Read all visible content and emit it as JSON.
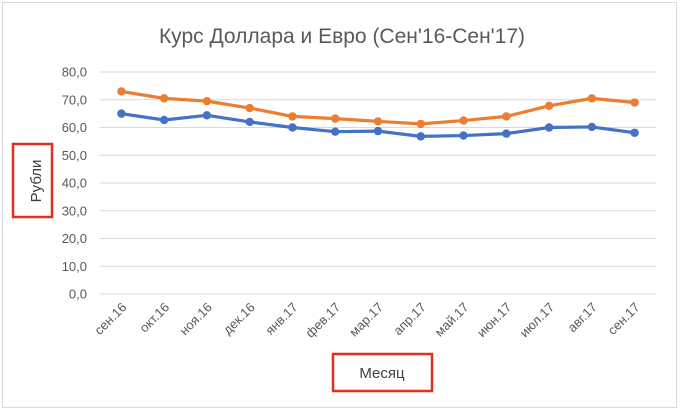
{
  "chart_data": {
    "type": "line",
    "title": "Курс Доллара и Евро (Сен'16-Сен'17)",
    "xlabel": "Месяц",
    "ylabel": "Рубли",
    "ylim": [
      0,
      80
    ],
    "yticks": [
      "0,0",
      "10,0",
      "20,0",
      "30,0",
      "40,0",
      "50,0",
      "60,0",
      "70,0",
      "80,0"
    ],
    "ytick_values": [
      0,
      10,
      20,
      30,
      40,
      50,
      60,
      70,
      80
    ],
    "grid": true,
    "legend": "none",
    "categories": [
      "сен.16",
      "окт.16",
      "ноя.16",
      "дек.16",
      "янв.17",
      "фев.17",
      "мар.17",
      "апр.17",
      "май.17",
      "июн.17",
      "июл.17",
      "авг.17",
      "сен.17"
    ],
    "series": [
      {
        "color": "#ED7D31",
        "values": [
          73.0,
          70.5,
          69.5,
          67.0,
          64.0,
          63.2,
          62.2,
          61.3,
          62.5,
          64.0,
          67.8,
          70.5,
          69.0
        ]
      },
      {
        "color": "#4472C4",
        "values": [
          65.0,
          62.7,
          64.4,
          62.0,
          60.0,
          58.5,
          58.7,
          56.8,
          57.1,
          57.8,
          60.0,
          60.2,
          58.1
        ]
      }
    ],
    "highlight_color": "#E0301E",
    "gridline_color": "#d9d9d9"
  }
}
